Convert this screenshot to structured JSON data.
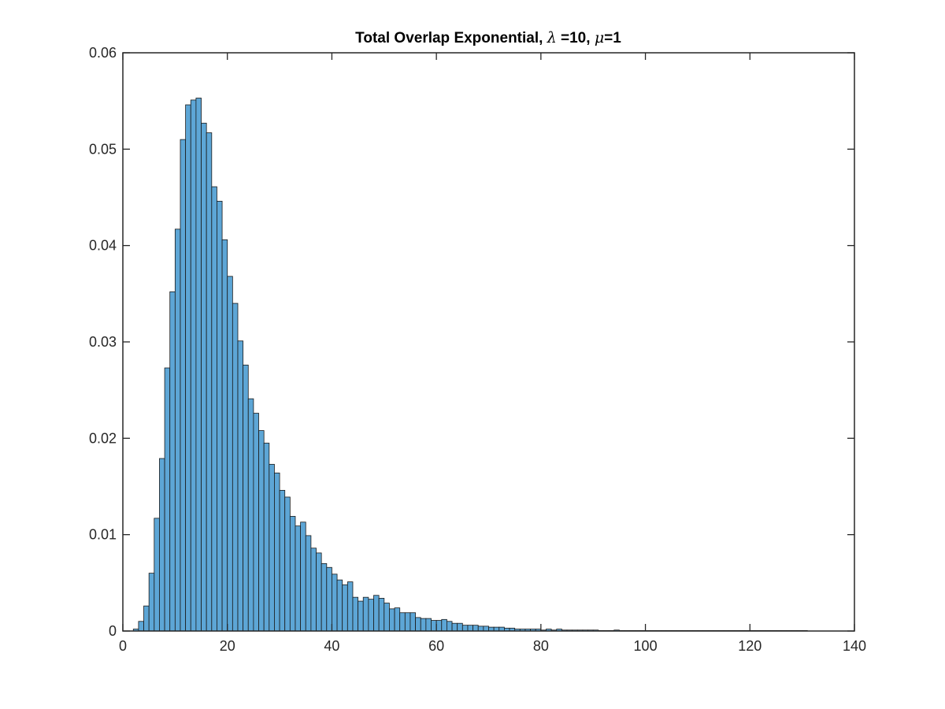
{
  "chart_data": {
    "type": "bar",
    "title": {
      "segments": [
        {
          "text": "Total Overlap Exponential, ",
          "greek": false
        },
        {
          "text": "λ",
          "greek": true
        },
        {
          "text": " =10, ",
          "greek": false
        },
        {
          "text": "μ",
          "greek": true
        },
        {
          "text": "=1",
          "greek": false
        }
      ]
    },
    "xlabel": "",
    "ylabel": "",
    "xlim": [
      0,
      140
    ],
    "ylim": [
      0,
      0.06
    ],
    "xticks": [
      0,
      20,
      40,
      60,
      80,
      100,
      120,
      140
    ],
    "xtick_labels": [
      "0",
      "20",
      "40",
      "60",
      "80",
      "100",
      "120",
      "140"
    ],
    "yticks": [
      0,
      0.01,
      0.02,
      0.03,
      0.04,
      0.05,
      0.06
    ],
    "ytick_labels": [
      "0",
      "0.01",
      "0.02",
      "0.03",
      "0.04",
      "0.05",
      "0.06"
    ],
    "grid": false,
    "bin_width": 1,
    "bin_start": 2,
    "values": [
      0.0002,
      0.001,
      0.0026,
      0.006,
      0.0117,
      0.0179,
      0.0273,
      0.0352,
      0.0417,
      0.051,
      0.0546,
      0.0551,
      0.0553,
      0.0527,
      0.0517,
      0.0461,
      0.0446,
      0.0406,
      0.0368,
      0.034,
      0.0301,
      0.0276,
      0.0241,
      0.0226,
      0.0208,
      0.0195,
      0.0173,
      0.0164,
      0.0146,
      0.0139,
      0.0119,
      0.0109,
      0.0113,
      0.0099,
      0.0086,
      0.0081,
      0.007,
      0.0066,
      0.0059,
      0.0053,
      0.0048,
      0.0051,
      0.0035,
      0.0031,
      0.0035,
      0.0033,
      0.0037,
      0.0034,
      0.0029,
      0.0023,
      0.0024,
      0.0019,
      0.0019,
      0.0019,
      0.0014,
      0.0013,
      0.0013,
      0.0011,
      0.0011,
      0.0012,
      0.001,
      0.0008,
      0.0008,
      0.0006,
      0.0006,
      0.0006,
      0.0005,
      0.0005,
      0.0004,
      0.0004,
      0.0004,
      0.0003,
      0.0003,
      0.0002,
      0.0002,
      0.0002,
      0.0002,
      0.0002,
      0.0001,
      0.0002,
      0.0001,
      0.0002,
      0.0001,
      0.0001,
      0.0001,
      0.0001,
      0.0001,
      0.0001,
      0.0001,
      5e-05,
      5e-05,
      5e-05,
      0.0001,
      5e-05,
      5e-05,
      5e-05,
      5e-05,
      5e-05,
      5e-05,
      5e-05,
      5e-05,
      5e-05,
      5e-05,
      5e-05,
      5e-05,
      5e-05,
      5e-05,
      5e-05,
      5e-05,
      5e-05,
      5e-05,
      5e-05,
      5e-05,
      5e-05,
      5e-05,
      5e-05,
      5e-05,
      5e-05,
      5e-05,
      5e-05,
      5e-05,
      5e-05,
      5e-05,
      5e-05,
      5e-05,
      5e-05,
      5e-05,
      5e-05,
      5e-05
    ],
    "bar_color": "#5DA6D6",
    "bar_edge_color": "#1a1a1a",
    "axis_color": "#262626"
  }
}
